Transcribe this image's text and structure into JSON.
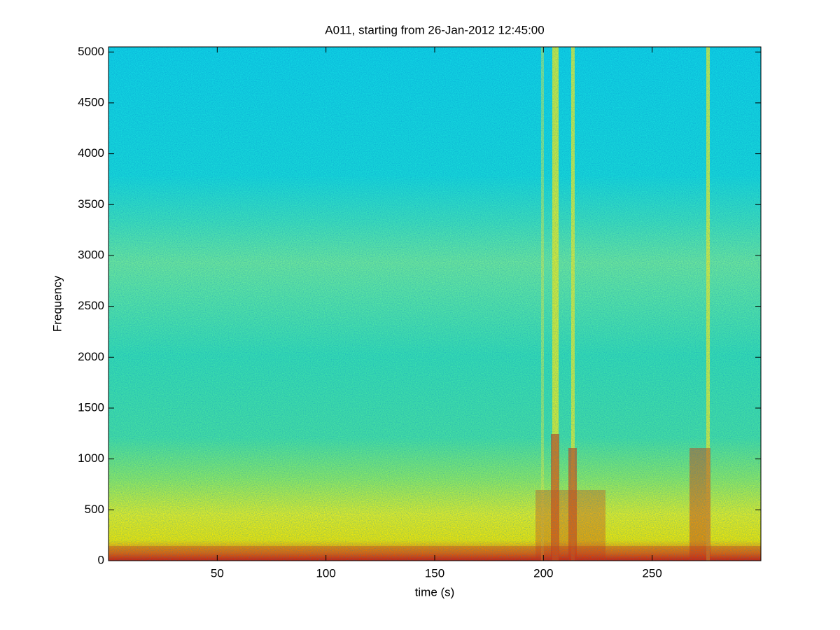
{
  "chart_data": {
    "type": "spectrogram",
    "title": "A011, starting from 26-Jan-2012 12:45:00",
    "x_label": "time (s)",
    "y_label": "Frequency",
    "xlim": [
      0,
      300
    ],
    "xticks": [
      50,
      100,
      150,
      200,
      250
    ],
    "ylim": [
      0,
      5050
    ],
    "yticks": [
      0,
      500,
      1000,
      1500,
      2000,
      2500,
      3000,
      3500,
      4000,
      4500,
      5000
    ]
  }
}
